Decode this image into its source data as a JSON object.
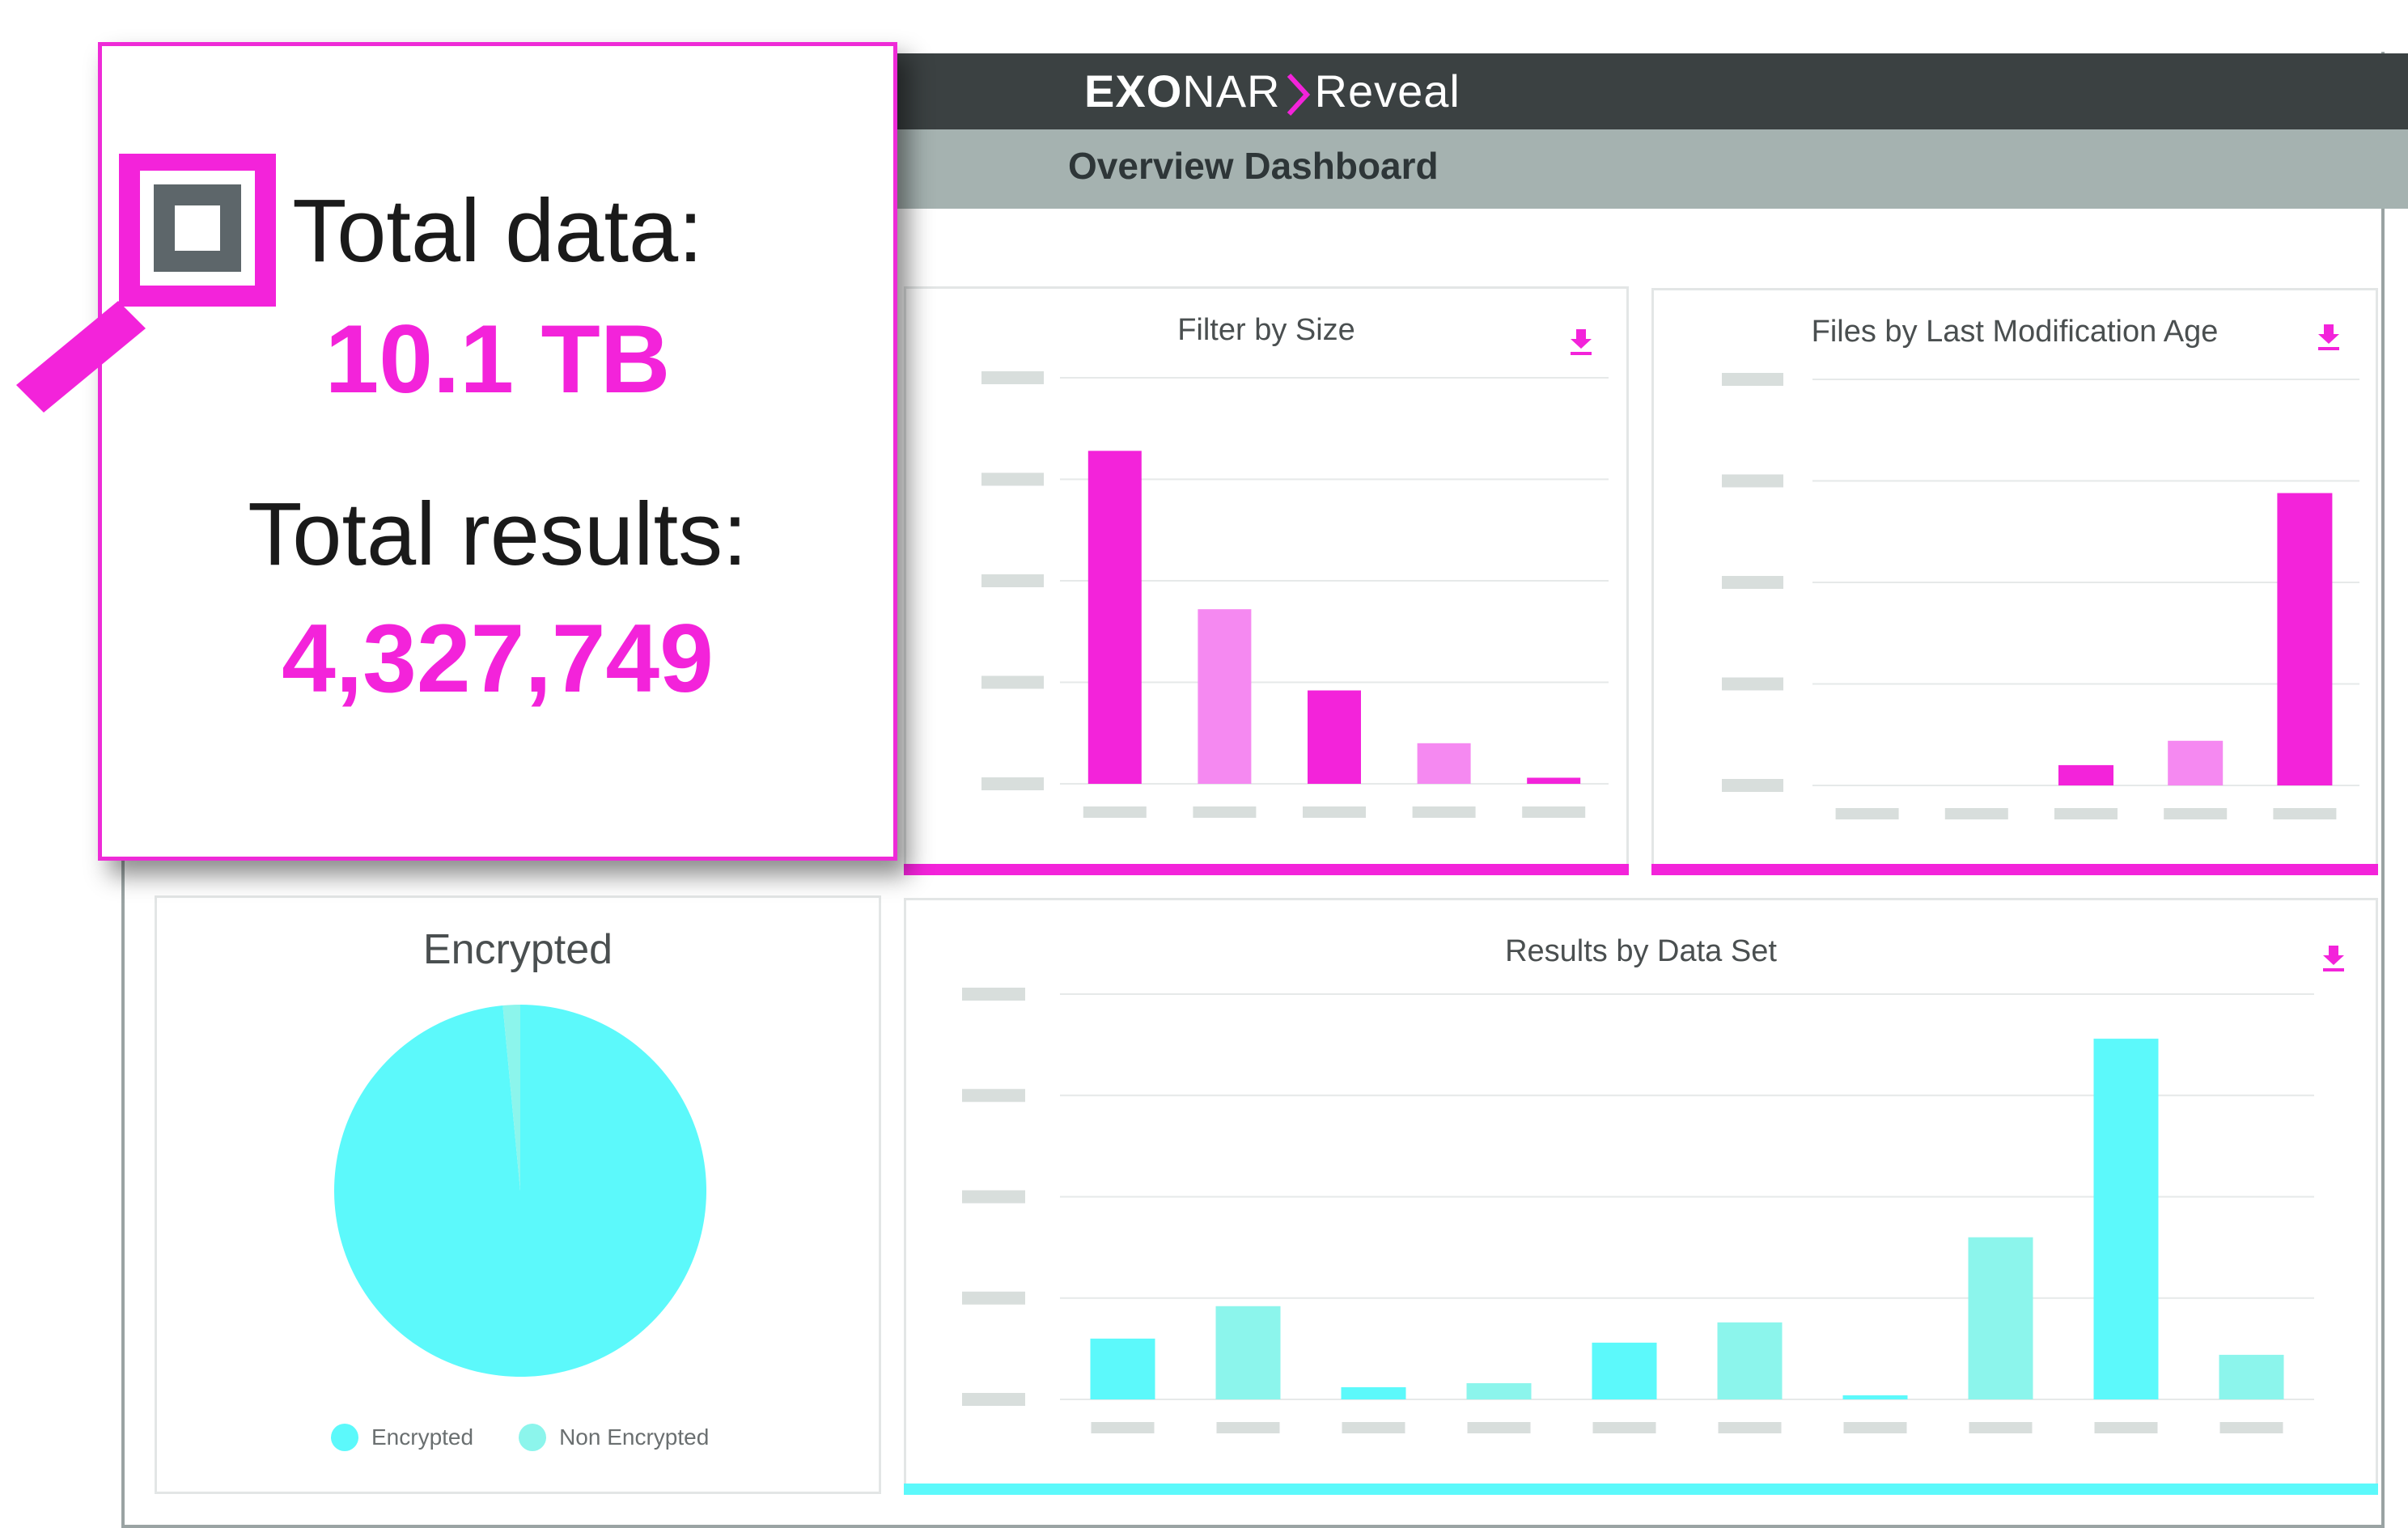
{
  "colors": {
    "magenta": "#f323da",
    "magenta_light": "#f589f1",
    "cyan": "#5cf9fb",
    "cyan_light": "#8cf5ec",
    "placeholder": "#d8dedc"
  },
  "header": {
    "logo_part1": "EXO",
    "logo_part2": "NAR",
    "product": "Reveal",
    "page_title": "Overview Dashboard"
  },
  "summary": {
    "icon": "magnifier-icon",
    "total_data_label": "Total data:",
    "total_data_value": "10.1 TB",
    "total_results_label": "Total results:",
    "total_results_value": "4,327,749"
  },
  "panels": {
    "size": {
      "title": "Filter by Size",
      "icon": "download-icon"
    },
    "age": {
      "title": "Files by Last Modification Age",
      "icon": "download-icon"
    },
    "encrypted": {
      "title": "Encrypted",
      "legend": [
        {
          "label": "Encrypted",
          "color": "#5cf9fb"
        },
        {
          "label": "Non Encrypted",
          "color": "#8cf5ec"
        }
      ]
    },
    "dataset": {
      "title": "Results by Data Set",
      "icon": "download-icon"
    }
  },
  "chart_data": [
    {
      "type": "bar",
      "title": "Filter by Size",
      "categories": [
        "",
        "",
        "",
        "",
        ""
      ],
      "values": [
        82,
        43,
        23,
        10,
        1.5
      ],
      "colors": [
        "#f323da",
        "#f589f1",
        "#f323da",
        "#f589f1",
        "#f323da"
      ],
      "ylim": [
        0,
        100
      ],
      "grid": true
    },
    {
      "type": "bar",
      "title": "Files by Last Modification Age",
      "categories": [
        "",
        "",
        "",
        "",
        ""
      ],
      "values": [
        0,
        0,
        5,
        11,
        72
      ],
      "colors": [
        "#f323da",
        "#f589f1",
        "#f323da",
        "#f589f1",
        "#f323da"
      ],
      "ylim": [
        0,
        100
      ],
      "grid": true
    },
    {
      "type": "pie",
      "title": "Encrypted",
      "slices": [
        {
          "label": "Encrypted",
          "value": 98.5,
          "color": "#5cf9fb"
        },
        {
          "label": "Non Encrypted",
          "value": 1.5,
          "color": "#8cf5ec"
        }
      ],
      "legend": "bottom"
    },
    {
      "type": "bar",
      "title": "Results by Data Set",
      "categories": [
        "",
        "",
        "",
        "",
        "",
        "",
        "",
        "",
        "",
        ""
      ],
      "values": [
        15,
        23,
        3,
        4,
        14,
        19,
        1,
        40,
        89,
        11
      ],
      "colors": [
        "#5cf9fb",
        "#8cf5ec",
        "#5cf9fb",
        "#8cf5ec",
        "#5cf9fb",
        "#8cf5ec",
        "#5cf9fb",
        "#8cf5ec",
        "#5cf9fb",
        "#8cf5ec"
      ],
      "ylim": [
        0,
        100
      ],
      "grid": true
    }
  ]
}
